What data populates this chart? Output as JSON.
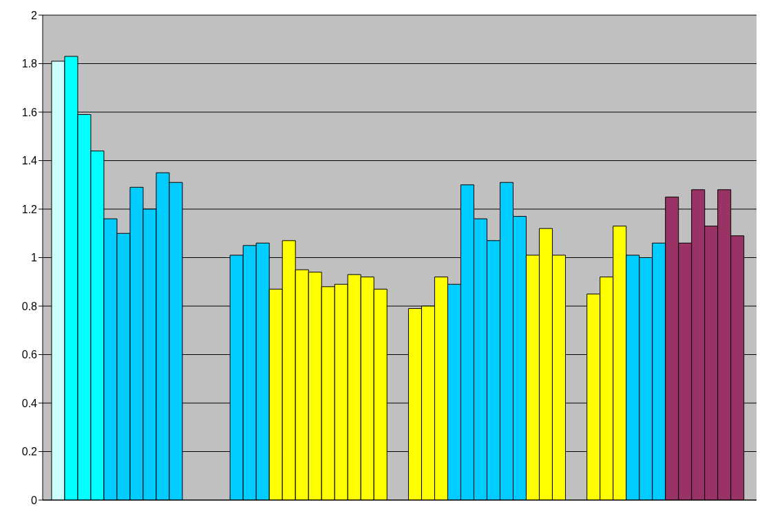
{
  "chart_data": {
    "type": "bar",
    "categories": [
      null,
      null,
      null,
      null
    ],
    "series": [
      {
        "colors": [
          "#ccffff",
          "#00ccff",
          "#ffff00",
          "#ffff00"
        ],
        "values": [
          1.81,
          1.01,
          0.79,
          0.85
        ]
      },
      {
        "colors": [
          "#00ffff",
          "#00ccff",
          "#ffff00",
          "#ffff00"
        ],
        "values": [
          1.83,
          1.05,
          0.8,
          0.92
        ]
      },
      {
        "colors": [
          "#00ffff",
          "#00ccff",
          "#ffff00",
          "#ffff00"
        ],
        "values": [
          1.59,
          1.06,
          0.92,
          1.13
        ]
      },
      {
        "colors": [
          "#00ffff",
          "#ffff00",
          "#00ccff",
          "#00ccff"
        ],
        "values": [
          1.44,
          0.87,
          0.89,
          1.01
        ]
      },
      {
        "colors": [
          "#00ccff",
          "#ffff00",
          "#00ccff",
          "#00ccff"
        ],
        "values": [
          1.16,
          1.07,
          1.3,
          1.0
        ]
      },
      {
        "colors": [
          "#00ccff",
          "#ffff00",
          "#00ccff",
          "#00ccff"
        ],
        "values": [
          1.1,
          0.95,
          1.16,
          1.06
        ]
      },
      {
        "colors": [
          "#00ccff",
          "#ffff00",
          "#00ccff",
          "#993366"
        ],
        "values": [
          1.29,
          0.94,
          1.07,
          1.25
        ]
      },
      {
        "colors": [
          "#00ccff",
          "#ffff00",
          "#00ccff",
          "#993366"
        ],
        "values": [
          1.2,
          0.88,
          1.31,
          1.06
        ]
      },
      {
        "colors": [
          "#00ccff",
          "#ffff00",
          "#00ccff",
          "#993366"
        ],
        "values": [
          1.35,
          0.89,
          1.17,
          1.28
        ]
      },
      {
        "colors": [
          "#00ccff",
          "#ffff00",
          "#ffff00",
          "#993366"
        ],
        "values": [
          1.31,
          0.93,
          1.01,
          1.13
        ]
      },
      {
        "colors": [
          "#00ccff",
          "#ffff00",
          "#ffff00",
          "#993366"
        ],
        "values": [
          null,
          0.92,
          1.12,
          1.28
        ]
      },
      {
        "colors": [
          "#00ccff",
          "#ffff00",
          "#ffff00",
          "#993366"
        ],
        "values": [
          null,
          0.87,
          1.01,
          1.09
        ]
      }
    ],
    "ylim": [
      0,
      2
    ],
    "yticks": [
      0,
      0.2,
      0.4,
      0.6,
      0.8,
      1,
      1.2,
      1.4,
      1.6,
      1.8,
      2
    ],
    "grid": "y",
    "tick_labels": "y"
  }
}
